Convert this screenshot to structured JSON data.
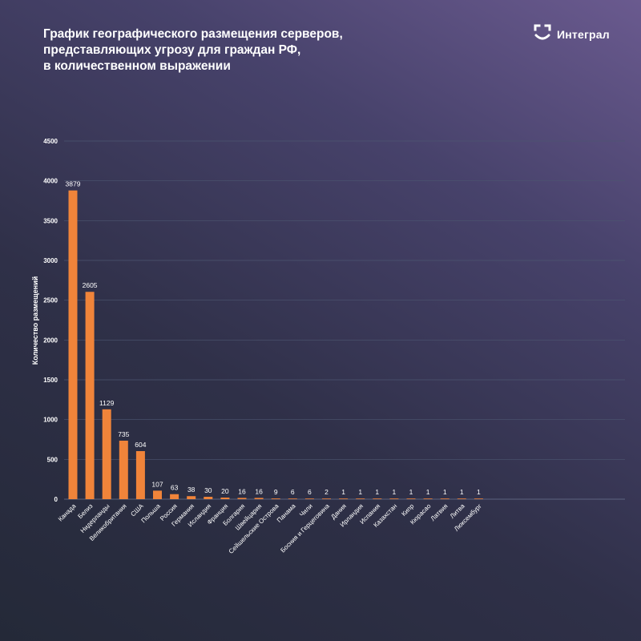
{
  "title_lines": [
    "График географического размещения серверов,",
    "представляющих угрозу для граждан РФ,",
    "в количественном выражении"
  ],
  "brand": {
    "name": "Интеграл",
    "icon": "integral-logo-icon"
  },
  "colors": {
    "bar": "#f0843a",
    "grid": "#4c5670",
    "text": "#ffffff"
  },
  "chart_data": {
    "type": "bar",
    "title": "График географического размещения серверов, представляющих угрозу для граждан РФ, в количественном выражении",
    "ylabel": "Количество размещений",
    "xlabel": "",
    "ylim": [
      0,
      4500
    ],
    "yticks": [
      0,
      500,
      1000,
      1500,
      2000,
      2500,
      3000,
      3500,
      4000,
      4500
    ],
    "grid": true,
    "legend": "none",
    "categories": [
      "Канада",
      "Белиз",
      "Нидерланды",
      "Великобритания",
      "США",
      "Польша",
      "Россия",
      "Германия",
      "Исландия",
      "Франция",
      "Болгария",
      "Швейцария",
      "Сейшельские Острова",
      "Панама",
      "Чили",
      "Босния и Герцеговина",
      "Дания",
      "Ирландия",
      "Испания",
      "Казахстан",
      "Кипр",
      "Кюрасао",
      "Латвия",
      "Литва",
      "Люксембург"
    ],
    "values": [
      3879,
      2605,
      1129,
      735,
      604,
      107,
      63,
      38,
      30,
      20,
      16,
      16,
      9,
      6,
      6,
      2,
      1,
      1,
      1,
      1,
      1,
      1,
      1,
      1,
      1
    ]
  }
}
